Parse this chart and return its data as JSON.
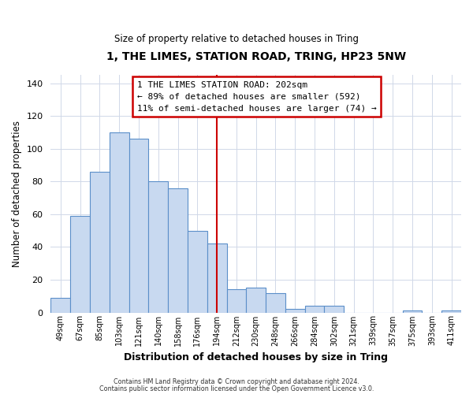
{
  "title": "1, THE LIMES, STATION ROAD, TRING, HP23 5NW",
  "subtitle": "Size of property relative to detached houses in Tring",
  "xlabel": "Distribution of detached houses by size in Tring",
  "ylabel": "Number of detached properties",
  "bar_labels": [
    "49sqm",
    "67sqm",
    "85sqm",
    "103sqm",
    "121sqm",
    "140sqm",
    "158sqm",
    "176sqm",
    "194sqm",
    "212sqm",
    "230sqm",
    "248sqm",
    "266sqm",
    "284sqm",
    "302sqm",
    "321sqm",
    "339sqm",
    "357sqm",
    "375sqm",
    "393sqm",
    "411sqm"
  ],
  "bar_heights": [
    9,
    59,
    86,
    110,
    106,
    80,
    76,
    50,
    42,
    14,
    15,
    12,
    2,
    4,
    4,
    0,
    0,
    0,
    1,
    0,
    1
  ],
  "bar_color": "#c8d9f0",
  "bar_edge_color": "#5b8fc9",
  "vline_x": 8.5,
  "vline_color": "#cc0000",
  "annotation_title": "1 THE LIMES STATION ROAD: 202sqm",
  "annotation_line1": "← 89% of detached houses are smaller (592)",
  "annotation_line2": "11% of semi-detached houses are larger (74) →",
  "annotation_box_color": "#cc0000",
  "ylim": [
    0,
    145
  ],
  "yticks": [
    0,
    20,
    40,
    60,
    80,
    100,
    120,
    140
  ],
  "footer1": "Contains HM Land Registry data © Crown copyright and database right 2024.",
  "footer2": "Contains public sector information licensed under the Open Government Licence v3.0.",
  "bg_color": "#ffffff",
  "plot_bg_color": "#ffffff",
  "grid_color": "#d0d8e8"
}
